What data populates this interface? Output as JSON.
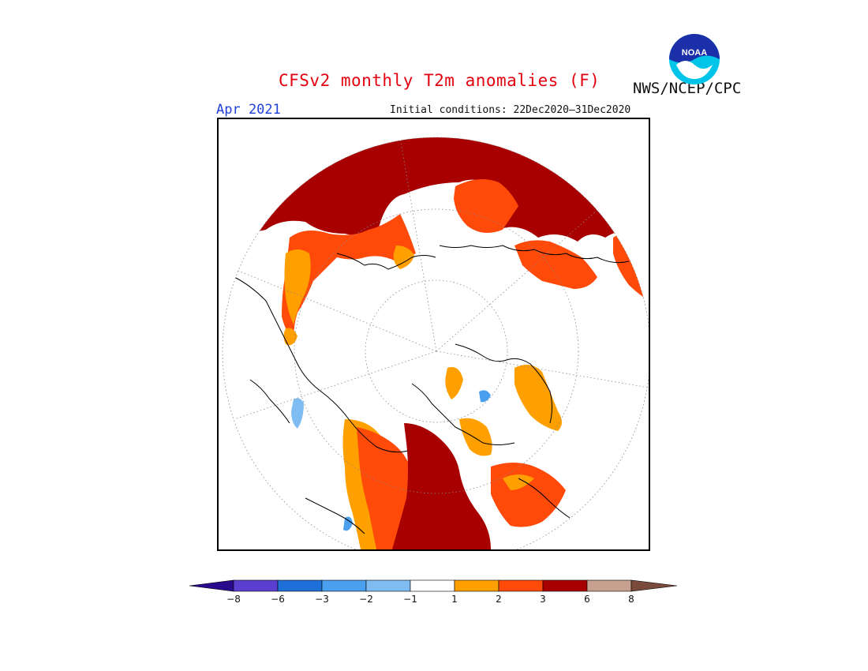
{
  "title": "CFSv2 monthly T2m anomalies (F)",
  "valid_month": "Apr 2021",
  "initial_conditions": "Initial conditions: 22Dec2020–31Dec2020",
  "agency": "NWS/NCEP/CPC",
  "logo_text": "NOAA",
  "map": {
    "projection": "north-polar-stereographic",
    "variable": "2m temperature anomaly",
    "units": "F"
  },
  "colorbar": {
    "colors": [
      "#2a0a8c",
      "#5a3fd0",
      "#1f6fd8",
      "#4aa0ee",
      "#7fbcf2",
      "#ffffff",
      "#ffa000",
      "#ff4a0a",
      "#a80000",
      "#c8a090",
      "#7a4a3a"
    ],
    "tick_labels": [
      "−8",
      "−6",
      "−3",
      "−2",
      "−1",
      "1",
      "2",
      "3",
      "6",
      "8"
    ]
  }
}
